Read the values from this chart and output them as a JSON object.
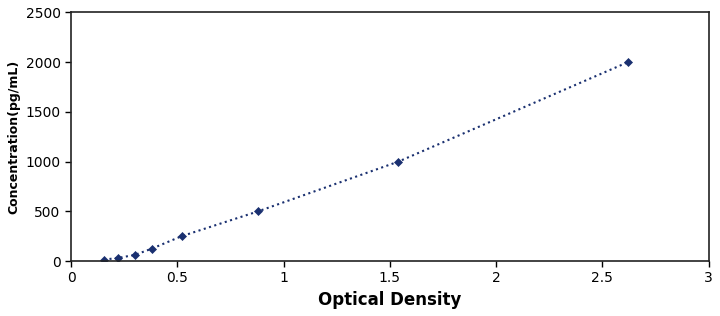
{
  "x": [
    0.155,
    0.22,
    0.3,
    0.38,
    0.52,
    0.88,
    1.54,
    2.62
  ],
  "y": [
    15,
    31,
    62,
    125,
    250,
    500,
    1000,
    2000
  ],
  "line_color": "#1a3070",
  "marker": "D",
  "marker_size": 4.5,
  "marker_color": "#1a3070",
  "line_style": ":",
  "line_width": 1.5,
  "xlabel": "Optical Density",
  "ylabel": "Concentration(pg/mL)",
  "xlim": [
    0,
    3
  ],
  "ylim": [
    0,
    2500
  ],
  "xticks": [
    0,
    0.5,
    1,
    1.5,
    2,
    2.5,
    3
  ],
  "yticks": [
    0,
    500,
    1000,
    1500,
    2000,
    2500
  ],
  "xlabel_fontsize": 12,
  "ylabel_fontsize": 9,
  "tick_fontsize": 10,
  "background_color": "#ffffff"
}
